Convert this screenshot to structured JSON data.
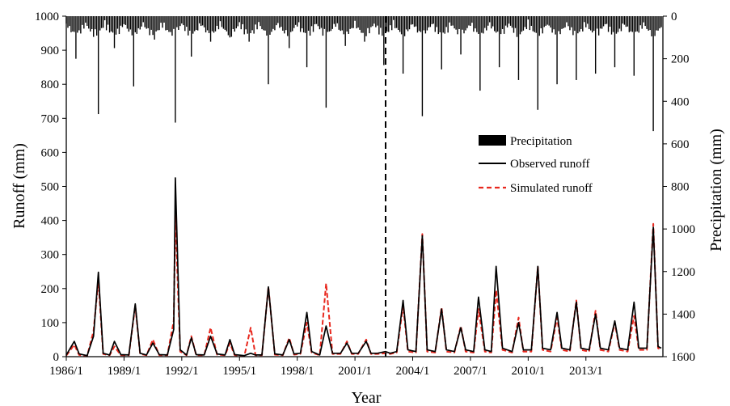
{
  "chart_data": {
    "type": "line",
    "x_axis": {
      "title": "Year",
      "ticks": [
        "1986/1",
        "1989/1",
        "1992/1",
        "1995/1",
        "1998/1",
        "2001/1",
        "2004/1",
        "2007/1",
        "2010/1",
        "2013/1"
      ],
      "range": [
        "1986/1",
        "2016/12"
      ]
    },
    "y_left": {
      "title": "Runoff (mm)",
      "ylim": [
        0,
        1000
      ],
      "ticks": [
        "0",
        "100",
        "200",
        "300",
        "400",
        "500",
        "600",
        "700",
        "800",
        "900",
        "1000"
      ]
    },
    "y_right": {
      "title": "Precipitation (mm)",
      "ylim": [
        0,
        1600
      ],
      "inverted": true,
      "ticks": [
        "0",
        "200",
        "400",
        "600",
        "800",
        "1000",
        "1200",
        "1400",
        "1600"
      ]
    },
    "divider_date": "2002/6",
    "legend": {
      "placement": "right-middle",
      "items": [
        {
          "label": "Precipitation",
          "style": "bar",
          "color": "#000000"
        },
        {
          "label": "Observed runoff",
          "style": "solid",
          "color": "#000000"
        },
        {
          "label": "Simulated runoff",
          "style": "dashed",
          "color": "#e8281e"
        }
      ]
    },
    "series": [
      {
        "name": "Observed runoff",
        "color": "#000000",
        "points": [
          [
            "1986/1",
            5
          ],
          [
            "1986/6",
            45
          ],
          [
            "1986/9",
            8
          ],
          [
            "1987/2",
            3
          ],
          [
            "1987/6",
            60
          ],
          [
            "1987/9",
            248
          ],
          [
            "1987/12",
            10
          ],
          [
            "1988/4",
            5
          ],
          [
            "1988/7",
            45
          ],
          [
            "1988/11",
            6
          ],
          [
            "1989/4",
            5
          ],
          [
            "1989/8",
            155
          ],
          [
            "1989/11",
            10
          ],
          [
            "1990/3",
            5
          ],
          [
            "1990/7",
            40
          ],
          [
            "1990/11",
            6
          ],
          [
            "1991/4",
            5
          ],
          [
            "1991/8",
            80
          ],
          [
            "1991/9",
            525
          ],
          [
            "1991/12",
            20
          ],
          [
            "1992/4",
            5
          ],
          [
            "1992/7",
            55
          ],
          [
            "1992/10",
            6
          ],
          [
            "1993/3",
            5
          ],
          [
            "1993/7",
            60
          ],
          [
            "1993/11",
            8
          ],
          [
            "1994/4",
            5
          ],
          [
            "1994/7",
            50
          ],
          [
            "1994/10",
            6
          ],
          [
            "1995/4",
            3
          ],
          [
            "1995/8",
            10
          ],
          [
            "1995/11",
            5
          ],
          [
            "1996/3",
            5
          ],
          [
            "1996/7",
            205
          ],
          [
            "1996/11",
            8
          ],
          [
            "1997/4",
            5
          ],
          [
            "1997/8",
            50
          ],
          [
            "1997/11",
            8
          ],
          [
            "1998/3",
            10
          ],
          [
            "1998/7",
            130
          ],
          [
            "1998/10",
            15
          ],
          [
            "1999/3",
            5
          ],
          [
            "1999/7",
            90
          ],
          [
            "1999/11",
            10
          ],
          [
            "2000/4",
            10
          ],
          [
            "2000/8",
            40
          ],
          [
            "2000/11",
            10
          ],
          [
            "2001/3",
            10
          ],
          [
            "2001/8",
            45
          ],
          [
            "2001/11",
            10
          ],
          [
            "2002/3",
            10
          ],
          [
            "2002/8",
            15
          ],
          [
            "2002/11",
            10
          ],
          [
            "2003/3",
            15
          ],
          [
            "2003/7",
            165
          ],
          [
            "2003/10",
            20
          ],
          [
            "2004/3",
            15
          ],
          [
            "2004/7",
            355
          ],
          [
            "2004/10",
            20
          ],
          [
            "2005/3",
            15
          ],
          [
            "2005/7",
            140
          ],
          [
            "2005/10",
            20
          ],
          [
            "2006/3",
            15
          ],
          [
            "2006/7",
            85
          ],
          [
            "2006/10",
            20
          ],
          [
            "2007/3",
            15
          ],
          [
            "2007/6",
            175
          ],
          [
            "2007/10",
            20
          ],
          [
            "2008/2",
            15
          ],
          [
            "2008/5",
            265
          ],
          [
            "2008/9",
            25
          ],
          [
            "2009/3",
            15
          ],
          [
            "2009/7",
            100
          ],
          [
            "2009/10",
            20
          ],
          [
            "2010/3",
            20
          ],
          [
            "2010/7",
            265
          ],
          [
            "2010/10",
            25
          ],
          [
            "2011/3",
            20
          ],
          [
            "2011/7",
            130
          ],
          [
            "2011/10",
            25
          ],
          [
            "2012/3",
            20
          ],
          [
            "2012/7",
            160
          ],
          [
            "2012/10",
            25
          ],
          [
            "2013/3",
            20
          ],
          [
            "2013/7",
            125
          ],
          [
            "2013/10",
            25
          ],
          [
            "2014/3",
            20
          ],
          [
            "2014/7",
            105
          ],
          [
            "2014/10",
            25
          ],
          [
            "2015/3",
            20
          ],
          [
            "2015/7",
            160
          ],
          [
            "2015/10",
            25
          ],
          [
            "2016/3",
            25
          ],
          [
            "2016/7",
            380
          ],
          [
            "2016/10",
            30
          ],
          [
            "2016/12",
            25
          ]
        ]
      },
      {
        "name": "Simulated runoff",
        "color": "#e8281e",
        "points": [
          [
            "1986/1",
            3
          ],
          [
            "1986/6",
            35
          ],
          [
            "1986/9",
            5
          ],
          [
            "1987/2",
            2
          ],
          [
            "1987/6",
            75
          ],
          [
            "1987/9",
            225
          ],
          [
            "1987/12",
            8
          ],
          [
            "1988/4",
            4
          ],
          [
            "1988/7",
            30
          ],
          [
            "1988/11",
            4
          ],
          [
            "1989/4",
            4
          ],
          [
            "1989/8",
            150
          ],
          [
            "1989/11",
            8
          ],
          [
            "1990/3",
            4
          ],
          [
            "1990/7",
            50
          ],
          [
            "1990/11",
            4
          ],
          [
            "1991/4",
            4
          ],
          [
            "1991/8",
            105
          ],
          [
            "1991/9",
            415
          ],
          [
            "1991/12",
            15
          ],
          [
            "1992/4",
            4
          ],
          [
            "1992/7",
            60
          ],
          [
            "1992/10",
            4
          ],
          [
            "1993/3",
            4
          ],
          [
            "1993/7",
            85
          ],
          [
            "1993/11",
            6
          ],
          [
            "1994/4",
            4
          ],
          [
            "1994/7",
            40
          ],
          [
            "1994/10",
            4
          ],
          [
            "1995/4",
            2
          ],
          [
            "1995/8",
            85
          ],
          [
            "1995/11",
            4
          ],
          [
            "1996/3",
            4
          ],
          [
            "1996/7",
            205
          ],
          [
            "1996/11",
            6
          ],
          [
            "1997/4",
            4
          ],
          [
            "1997/8",
            55
          ],
          [
            "1997/11",
            6
          ],
          [
            "1998/3",
            8
          ],
          [
            "1998/7",
            100
          ],
          [
            "1998/10",
            12
          ],
          [
            "1999/3",
            4
          ],
          [
            "1999/7",
            215
          ],
          [
            "1999/11",
            8
          ],
          [
            "2000/4",
            8
          ],
          [
            "2000/8",
            45
          ],
          [
            "2000/11",
            8
          ],
          [
            "2001/3",
            8
          ],
          [
            "2001/8",
            50
          ],
          [
            "2001/11",
            8
          ],
          [
            "2002/3",
            8
          ],
          [
            "2002/8",
            10
          ],
          [
            "2002/11",
            8
          ],
          [
            "2003/3",
            12
          ],
          [
            "2003/7",
            150
          ],
          [
            "2003/10",
            15
          ],
          [
            "2004/3",
            12
          ],
          [
            "2004/7",
            360
          ],
          [
            "2004/10",
            15
          ],
          [
            "2005/3",
            12
          ],
          [
            "2005/7",
            145
          ],
          [
            "2005/10",
            15
          ],
          [
            "2006/3",
            12
          ],
          [
            "2006/7",
            90
          ],
          [
            "2006/10",
            15
          ],
          [
            "2007/3",
            12
          ],
          [
            "2007/6",
            140
          ],
          [
            "2007/10",
            15
          ],
          [
            "2008/2",
            12
          ],
          [
            "2008/5",
            195
          ],
          [
            "2008/9",
            20
          ],
          [
            "2009/3",
            12
          ],
          [
            "2009/7",
            115
          ],
          [
            "2009/10",
            15
          ],
          [
            "2010/3",
            15
          ],
          [
            "2010/7",
            265
          ],
          [
            "2010/10",
            20
          ],
          [
            "2011/3",
            15
          ],
          [
            "2011/7",
            115
          ],
          [
            "2011/10",
            20
          ],
          [
            "2012/3",
            15
          ],
          [
            "2012/7",
            165
          ],
          [
            "2012/10",
            20
          ],
          [
            "2013/3",
            15
          ],
          [
            "2013/7",
            135
          ],
          [
            "2013/10",
            20
          ],
          [
            "2014/3",
            15
          ],
          [
            "2014/7",
            100
          ],
          [
            "2014/10",
            20
          ],
          [
            "2015/3",
            15
          ],
          [
            "2015/7",
            120
          ],
          [
            "2015/10",
            20
          ],
          [
            "2016/3",
            20
          ],
          [
            "2016/7",
            390
          ],
          [
            "2016/10",
            25
          ],
          [
            "2016/12",
            20
          ]
        ]
      },
      {
        "name": "Precipitation",
        "color": "#000000",
        "points": [
          [
            "1986/7",
            200
          ],
          [
            "1987/9",
            460
          ],
          [
            "1988/7",
            150
          ],
          [
            "1989/7",
            330
          ],
          [
            "1990/8",
            110
          ],
          [
            "1991/9",
            500
          ],
          [
            "1992/7",
            190
          ],
          [
            "1993/7",
            120
          ],
          [
            "1994/7",
            100
          ],
          [
            "1995/7",
            120
          ],
          [
            "1996/7",
            320
          ],
          [
            "1997/8",
            150
          ],
          [
            "1998/7",
            240
          ],
          [
            "1999/7",
            430
          ],
          [
            "2000/7",
            140
          ],
          [
            "2001/7",
            120
          ],
          [
            "2002/7",
            230
          ],
          [
            "2003/7",
            270
          ],
          [
            "2004/7",
            470
          ],
          [
            "2005/7",
            250
          ],
          [
            "2006/7",
            180
          ],
          [
            "2007/7",
            350
          ],
          [
            "2008/7",
            240
          ],
          [
            "2009/7",
            300
          ],
          [
            "2010/7",
            440
          ],
          [
            "2011/7",
            320
          ],
          [
            "2012/7",
            300
          ],
          [
            "2013/7",
            270
          ],
          [
            "2014/7",
            240
          ],
          [
            "2015/7",
            280
          ],
          [
            "2016/7",
            540
          ]
        ]
      }
    ]
  }
}
